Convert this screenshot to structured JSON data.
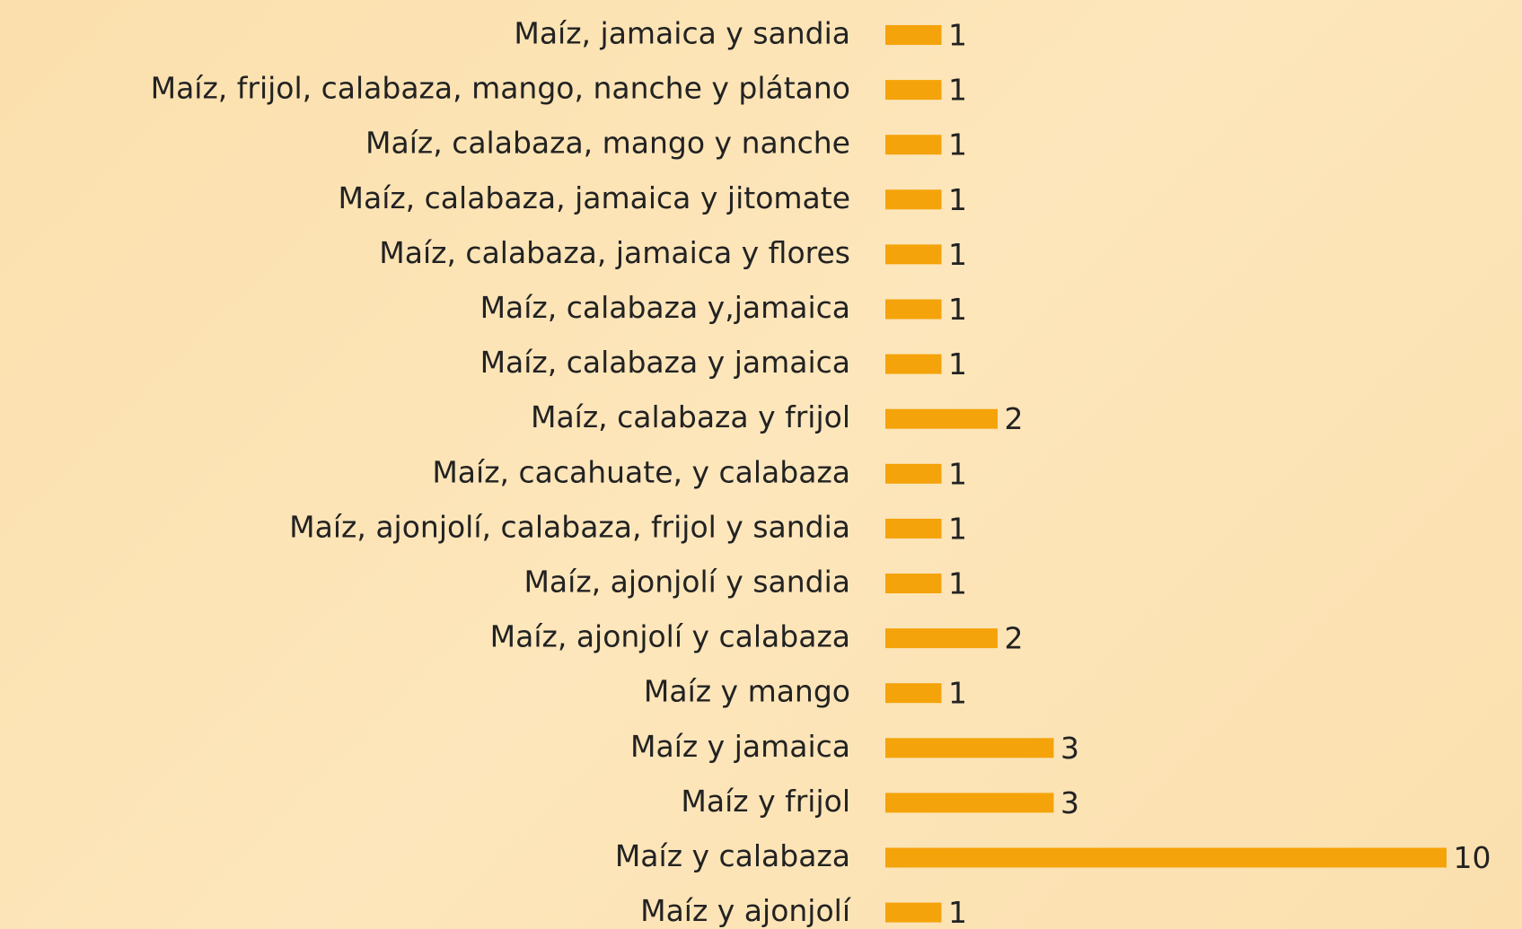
{
  "chart_data": {
    "type": "barh",
    "categories": [
      "Maíz, jamaica y sandia",
      "Maíz, frijol, calabaza, mango, nanche y plátano",
      "Maíz, calabaza, mango y nanche",
      "Maíz, calabaza, jamaica y jitomate",
      "Maíz, calabaza, jamaica y flores",
      "Maíz, calabaza y,jamaica",
      "Maíz, calabaza y jamaica",
      "Maíz, calabaza y frijol",
      "Maíz, cacahuate, y calabaza",
      "Maíz, ajonjolí, calabaza, frijol y sandia",
      "Maíz, ajonjolí y sandia",
      "Maíz, ajonjolí y calabaza",
      "Maíz y mango",
      "Maíz y jamaica",
      "Maíz y frijol",
      "Maíz y calabaza",
      "Maíz y ajonjolí"
    ],
    "values": [
      1,
      1,
      1,
      1,
      1,
      1,
      1,
      2,
      1,
      1,
      1,
      2,
      1,
      3,
      3,
      10,
      1
    ],
    "color": "#f4a30a"
  }
}
